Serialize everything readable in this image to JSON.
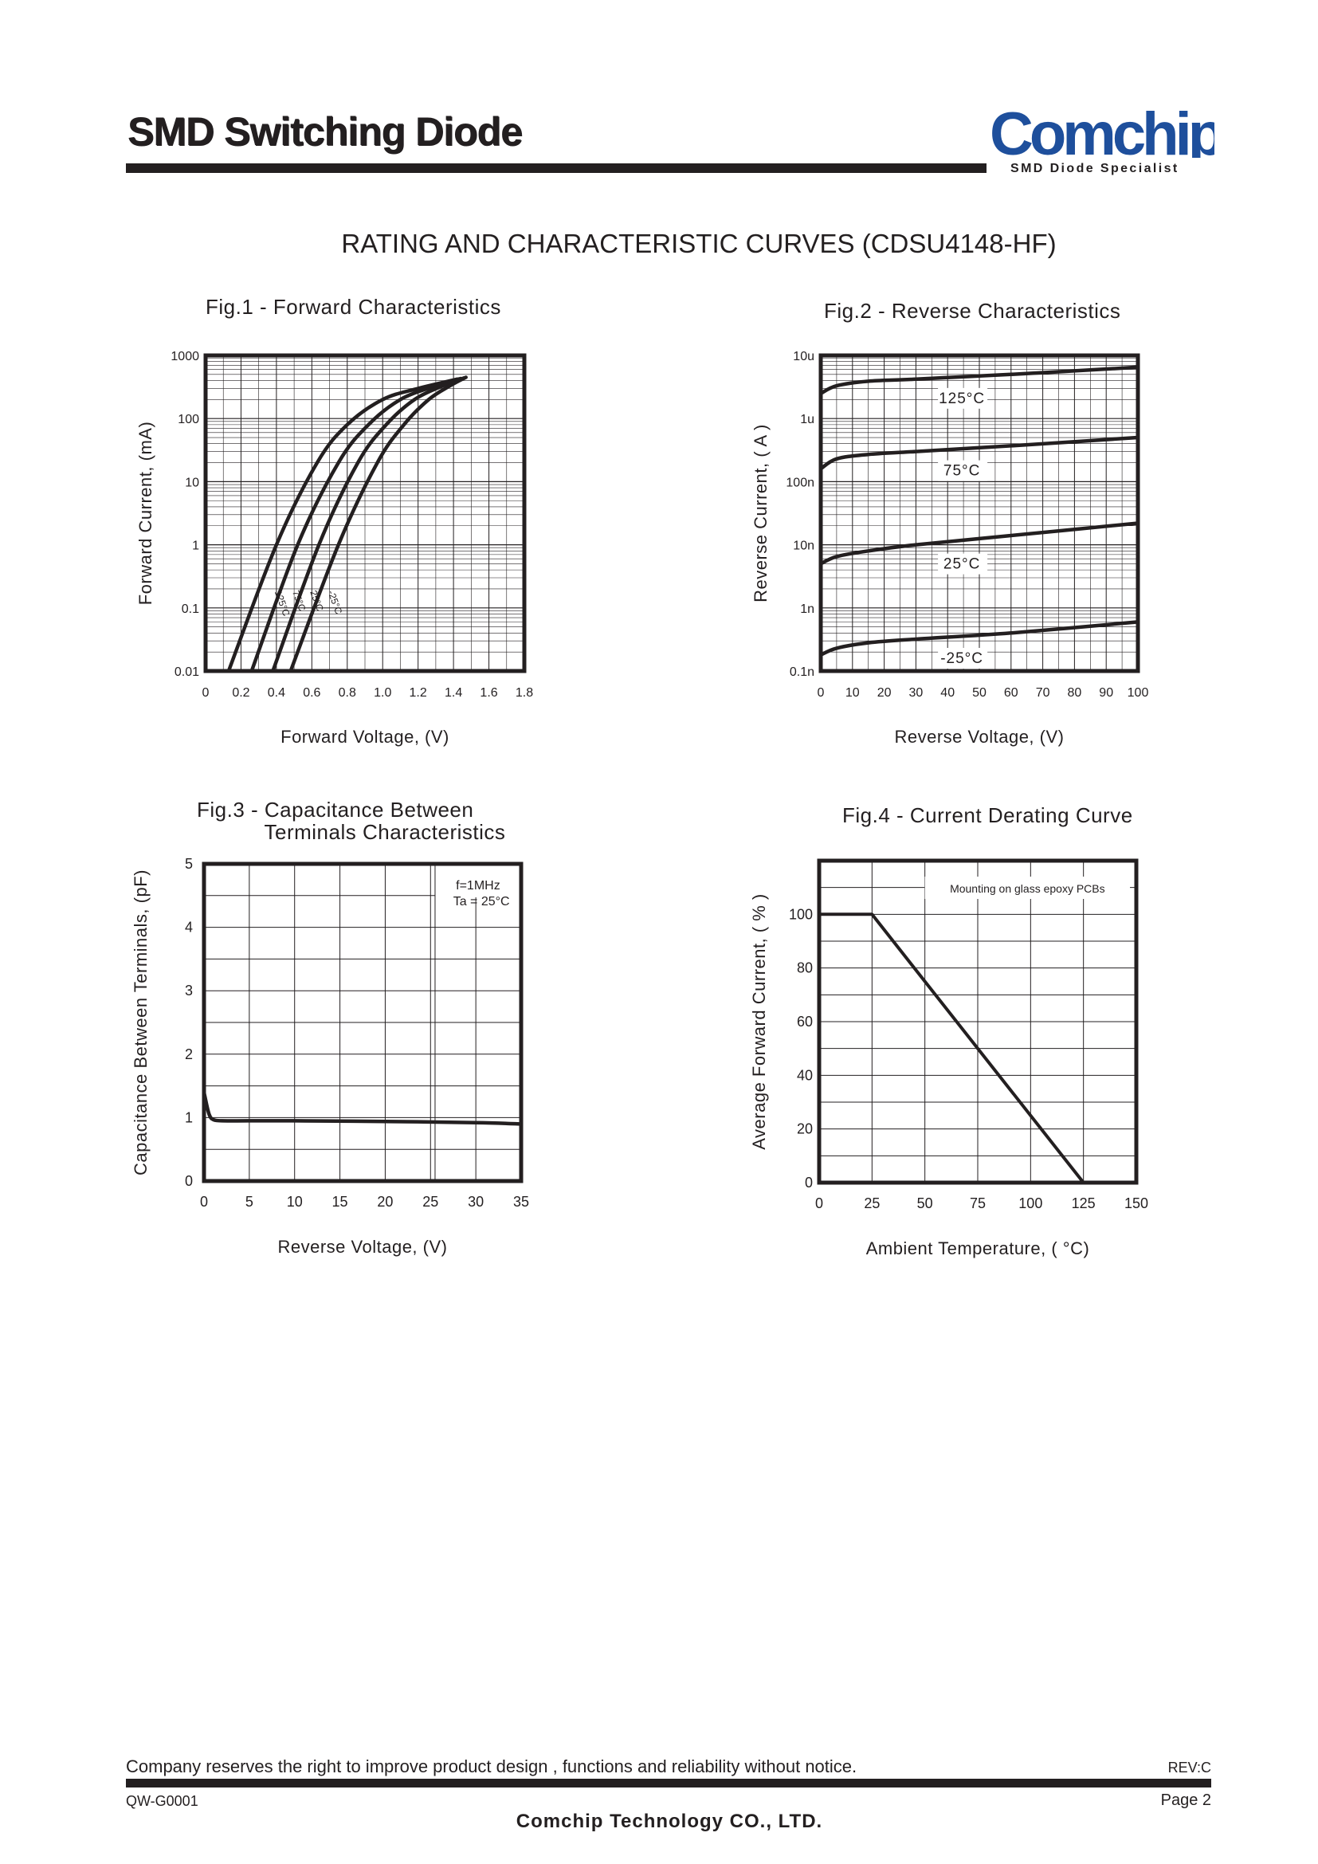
{
  "header": {
    "title": "SMD Switching Diode",
    "logo_text": "Comchip",
    "logo_tagline": "SMD Diode Specialist",
    "logo_color": "#1e4f9c"
  },
  "section_title": "RATING AND CHARACTERISTIC CURVES (CDSU4148-HF)",
  "figures": [
    {
      "title": "Fig.1 - Forward Characteristics",
      "xlabel": "Forward Voltage, (V)",
      "ylabel": "Forward Current, (mA)"
    },
    {
      "title": "Fig.2 - Reverse Characteristics",
      "xlabel": "Reverse Voltage, (V)",
      "ylabel": "Reverse Current, ( A )"
    },
    {
      "title": "Fig.3 - Capacitance Between\n           Terminals Characteristics",
      "xlabel": "Reverse Voltage, (V)",
      "ylabel": "Capacitance Between Terminals, (pF)"
    },
    {
      "title": "Fig.4 - Current Derating Curve",
      "xlabel": "Ambient Temperature, ( °C)",
      "ylabel": "Average Forward Current, ( % )"
    }
  ],
  "chart_data": [
    {
      "type": "line",
      "title": "Fig.1 - Forward Characteristics",
      "xlabel": "Forward Voltage, (V)",
      "ylabel": "Forward Current, (mA)",
      "xlim": [
        0,
        1.8
      ],
      "ylim": [
        0.01,
        1000
      ],
      "y_scale": "log",
      "x_ticks": [
        "0",
        "0.2",
        "0.4",
        "0.6",
        "0.8",
        "1.0",
        "1.2",
        "1.4",
        "1.6",
        "1.8"
      ],
      "y_ticks": [
        "0.01",
        "0.1",
        "1",
        "10",
        "100",
        "1000"
      ],
      "grid": true,
      "series": [
        {
          "name": "125°C",
          "points": [
            [
              0.13,
              0.01
            ],
            [
              0.4,
              1
            ],
            [
              0.63,
              20
            ],
            [
              0.8,
              80
            ],
            [
              1.0,
              200
            ],
            [
              1.2,
              300
            ],
            [
              1.42,
              420
            ]
          ]
        },
        {
          "name": "75°C",
          "points": [
            [
              0.26,
              0.01
            ],
            [
              0.52,
              1
            ],
            [
              0.75,
              20
            ],
            [
              0.92,
              80
            ],
            [
              1.1,
              200
            ],
            [
              1.3,
              330
            ],
            [
              1.44,
              430
            ]
          ]
        },
        {
          "name": "25°C",
          "points": [
            [
              0.38,
              0.01
            ],
            [
              0.64,
              1
            ],
            [
              0.86,
              20
            ],
            [
              1.02,
              80
            ],
            [
              1.18,
              200
            ],
            [
              1.34,
              330
            ],
            [
              1.46,
              440
            ]
          ]
        },
        {
          "name": "-25°C",
          "points": [
            [
              0.48,
              0.01
            ],
            [
              0.75,
              1
            ],
            [
              0.97,
              20
            ],
            [
              1.12,
              80
            ],
            [
              1.26,
              200
            ],
            [
              1.38,
              330
            ],
            [
              1.47,
              450
            ]
          ]
        }
      ]
    },
    {
      "type": "line",
      "title": "Fig.2 - Reverse Characteristics",
      "xlabel": "Reverse Voltage, (V)",
      "ylabel": "Reverse Current, ( A )",
      "xlim": [
        0,
        100
      ],
      "ylim": [
        1e-10,
        1e-05
      ],
      "y_scale": "log",
      "x_ticks": [
        "0",
        "10",
        "20",
        "30",
        "40",
        "50",
        "60",
        "70",
        "80",
        "90",
        "100"
      ],
      "y_ticks": [
        "0.1n",
        "1n",
        "10n",
        "100n",
        "1u",
        "10u"
      ],
      "grid": true,
      "series": [
        {
          "name": "125°C",
          "points": [
            [
              0,
              2.5e-06
            ],
            [
              5,
              3.3e-06
            ],
            [
              15,
              3.9e-06
            ],
            [
              30,
              4.2e-06
            ],
            [
              60,
              5e-06
            ],
            [
              100,
              6.5e-06
            ]
          ]
        },
        {
          "name": "75°C",
          "points": [
            [
              0,
              1.6e-07
            ],
            [
              5,
              2.3e-07
            ],
            [
              15,
              2.7e-07
            ],
            [
              30,
              3e-07
            ],
            [
              60,
              3.7e-07
            ],
            [
              100,
              5e-07
            ]
          ]
        },
        {
          "name": "25°C",
          "points": [
            [
              0,
              5e-09
            ],
            [
              5,
              6.5e-09
            ],
            [
              15,
              8e-09
            ],
            [
              30,
              1e-08
            ],
            [
              60,
              1.4e-08
            ],
            [
              100,
              2.2e-08
            ]
          ]
        },
        {
          "name": "-25°C",
          "points": [
            [
              0,
              1.8e-10
            ],
            [
              5,
              2.3e-10
            ],
            [
              15,
              2.8e-10
            ],
            [
              30,
              3.2e-10
            ],
            [
              60,
              4e-10
            ],
            [
              100,
              6e-10
            ]
          ]
        }
      ]
    },
    {
      "type": "line",
      "title": "Fig.3 - Capacitance Between Terminals Characteristics",
      "xlabel": "Reverse Voltage, (V)",
      "ylabel": "Capacitance Between Terminals, (pF)",
      "xlim": [
        0,
        35
      ],
      "ylim": [
        0,
        5
      ],
      "x_ticks": [
        "0",
        "5",
        "10",
        "15",
        "20",
        "25",
        "30",
        "35"
      ],
      "y_ticks": [
        "0",
        "1",
        "2",
        "3",
        "4",
        "5"
      ],
      "grid": true,
      "annotation": [
        "f=1MHz",
        "Ta = 25°C"
      ],
      "series": [
        {
          "name": "",
          "points": [
            [
              0,
              1.4
            ],
            [
              0.3,
              1.2
            ],
            [
              0.6,
              1.04
            ],
            [
              1,
              0.97
            ],
            [
              2,
              0.95
            ],
            [
              5,
              0.95
            ],
            [
              10,
              0.95
            ],
            [
              20,
              0.94
            ],
            [
              30,
              0.92
            ],
            [
              35,
              0.9
            ]
          ]
        }
      ]
    },
    {
      "type": "line",
      "title": "Fig.4 - Current Derating Curve",
      "xlabel": "Ambient Temperature, ( °C)",
      "ylabel": "Average Forward Current, ( % )",
      "xlim": [
        0,
        150
      ],
      "ylim": [
        0,
        120
      ],
      "x_ticks": [
        "0",
        "25",
        "50",
        "75",
        "100",
        "125",
        "150"
      ],
      "y_ticks": [
        "0",
        "20",
        "40",
        "60",
        "80",
        "100"
      ],
      "grid": true,
      "annotation": [
        "Mounting on glass epoxy PCBs"
      ],
      "series": [
        {
          "name": "",
          "points": [
            [
              0,
              100
            ],
            [
              25,
              100
            ],
            [
              125,
              0
            ]
          ]
        }
      ]
    }
  ],
  "footer": {
    "notice": "Company reserves the right to improve product design , functions and reliability without notice.",
    "rev": "REV:C",
    "doc_code": "QW-G0001",
    "page": "Page 2",
    "company": "Comchip Technology CO., LTD."
  }
}
